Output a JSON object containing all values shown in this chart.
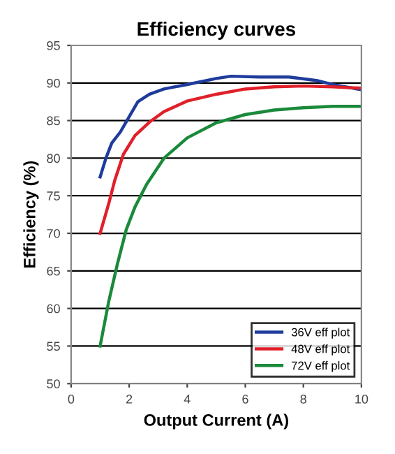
{
  "chart_data": {
    "type": "line",
    "title": "Efficiency curves",
    "xlabel": "Output Current (A)",
    "ylabel": "Efficiency (%)",
    "xlim": [
      0,
      10
    ],
    "xticks": [
      0,
      2,
      4,
      6,
      8,
      10
    ],
    "ylim": [
      50,
      95
    ],
    "yticks": [
      50,
      55,
      60,
      65,
      70,
      75,
      80,
      85,
      90,
      95
    ],
    "grid": "y",
    "legend": "bottom right",
    "marker": "none",
    "line_style": "solid",
    "series": [
      {
        "name": "36V eff plot",
        "color": "#1f3c9c",
        "x": [
          1,
          1.2,
          1.4,
          1.7,
          2.0,
          2.3,
          2.7,
          3.2,
          4,
          5,
          5.5,
          6.5,
          7.5,
          8.5,
          9,
          10
        ],
        "values": [
          77.5,
          80,
          82,
          83.5,
          85.5,
          87.5,
          88.5,
          89.2,
          89.8,
          90.6,
          90.9,
          90.8,
          90.8,
          90.3,
          89.8,
          89.1
        ]
      },
      {
        "name": "48V eff plot",
        "color": "#e0202a",
        "x": [
          1,
          1.3,
          1.5,
          1.8,
          2.2,
          2.7,
          3.2,
          4,
          5,
          6,
          7,
          8,
          9,
          10
        ],
        "values": [
          70,
          74,
          77,
          80.5,
          83,
          84.8,
          86.2,
          87.6,
          88.5,
          89.2,
          89.5,
          89.6,
          89.5,
          89.3
        ]
      },
      {
        "name": "72V eff plot",
        "color": "#1a8a3a",
        "x": [
          1,
          1.3,
          1.6,
          1.9,
          2.2,
          2.6,
          3.2,
          4,
          5,
          6,
          7,
          8,
          9,
          10
        ],
        "values": [
          55,
          61,
          66,
          70.5,
          73.5,
          76.5,
          80,
          82.7,
          84.7,
          85.8,
          86.4,
          86.7,
          86.9,
          86.9
        ]
      }
    ]
  }
}
